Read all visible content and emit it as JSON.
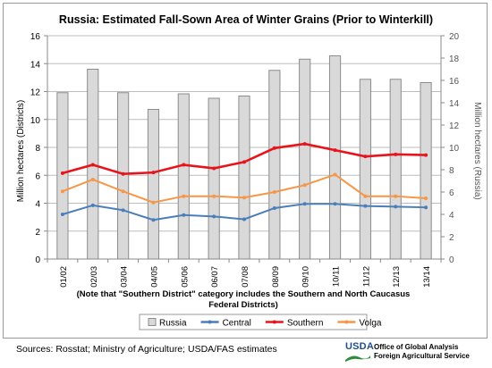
{
  "chart_data": {
    "type": "bar+line",
    "title": "Russia:  Estimated Fall-Sown Area of Winter Grains (Prior to Winterkill)",
    "categories": [
      "01/02",
      "02/03",
      "03/04",
      "04/05",
      "05/06",
      "06/07",
      "07/08",
      "08/09",
      "09/10",
      "10/11",
      "11/12",
      "12/13",
      "13/14"
    ],
    "ylabel_left": "Million hectares (Districts)",
    "ylabel_right": "Million hectares (Russia)",
    "ylim_left": [
      0,
      16
    ],
    "ylim_right": [
      0,
      20
    ],
    "yticks_left": [
      "0",
      "2",
      "4",
      "6",
      "8",
      "10",
      "12",
      "14",
      "16"
    ],
    "yticks_right": [
      "0",
      "2",
      "4",
      "6",
      "8",
      "10",
      "12",
      "14",
      "16",
      "18",
      "20"
    ],
    "note": "(Note that \"Southern District\" category includes the Southern and North Caucasus Federal Districts)",
    "grid": true,
    "legend_position": "bottom",
    "bar_series": {
      "name": "Russia",
      "axis": "right",
      "color": "#d9d9d9",
      "values": [
        14.9,
        17.0,
        14.9,
        13.4,
        14.8,
        14.4,
        14.6,
        16.9,
        17.9,
        18.2,
        16.1,
        16.1,
        15.8
      ]
    },
    "series": [
      {
        "name": "Central",
        "axis": "left",
        "color": "#4a7ebb",
        "values": [
          3.2,
          3.85,
          3.5,
          2.8,
          3.15,
          3.05,
          2.85,
          3.65,
          3.95,
          3.95,
          3.8,
          3.75,
          3.7
        ]
      },
      {
        "name": "Southern",
        "axis": "left",
        "color": "#e8141c",
        "values": [
          6.15,
          6.75,
          6.1,
          6.2,
          6.75,
          6.5,
          6.95,
          7.95,
          8.25,
          7.8,
          7.35,
          7.5,
          7.45
        ]
      },
      {
        "name": "Volga",
        "axis": "left",
        "color": "#f79646",
        "values": [
          4.85,
          5.7,
          4.85,
          4.05,
          4.5,
          4.5,
          4.4,
          4.8,
          5.3,
          6.05,
          4.5,
          4.5,
          4.35
        ]
      }
    ]
  },
  "footer": {
    "sources": "Sources:  Rosstat; Ministry of Agriculture;  USDA/FAS estimates",
    "logo_word": "USDA",
    "office_line1": "Office of Global Analysis",
    "office_line2": "Foreign Agricultural Service"
  }
}
